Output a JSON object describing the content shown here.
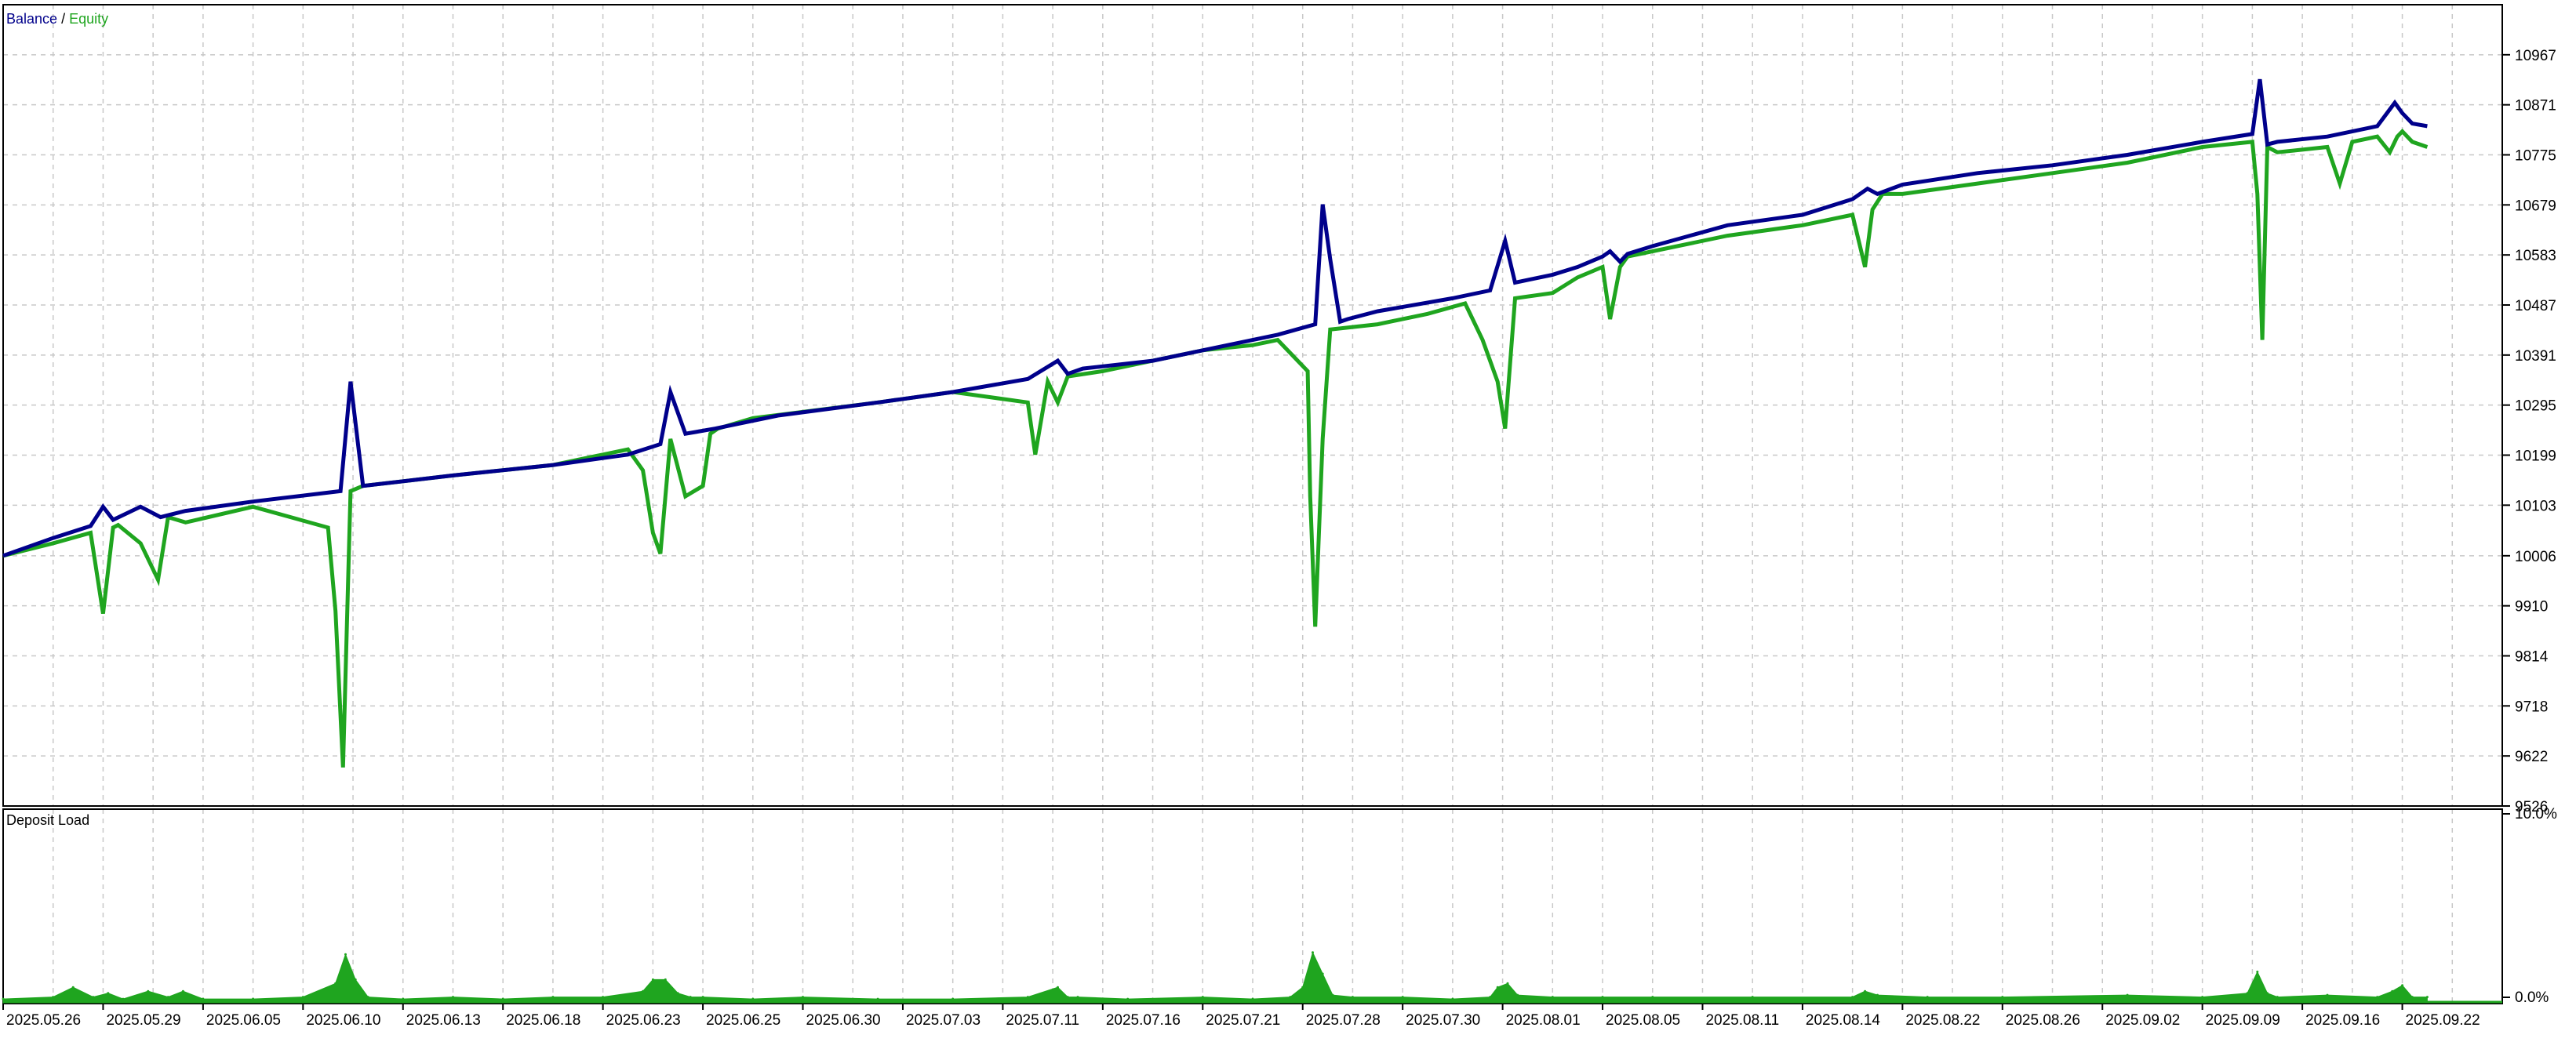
{
  "legend": {
    "balance": "Balance",
    "separator": " / ",
    "equity": "Equity"
  },
  "panel_lower_title": "Deposit Load",
  "colors": {
    "balance": "#00008b",
    "equity": "#1fa51f",
    "grid": "#c8c8c8",
    "axis": "#000000",
    "text": "#000000",
    "background": "#ffffff",
    "deposit": "#1fa51f"
  },
  "chart_data": [
    {
      "type": "line",
      "title": "",
      "legend_placement": "top-left",
      "grid": true,
      "ylim": [
        9526,
        11063
      ],
      "y_ticks": [
        9526,
        9622,
        9718,
        9814,
        9910,
        10006,
        10103,
        10199,
        10295,
        10391,
        10487,
        10583,
        10679,
        10775,
        10871,
        10967
      ],
      "x_ticks": [
        "2025.05.26",
        "2025.05.29",
        "2025.06.05",
        "2025.06.10",
        "2025.06.13",
        "2025.06.18",
        "2025.06.23",
        "2025.06.25",
        "2025.06.30",
        "2025.07.03",
        "2025.07.11",
        "2025.07.16",
        "2025.07.21",
        "2025.07.28",
        "2025.07.30",
        "2025.08.01",
        "2025.08.05",
        "2025.08.11",
        "2025.08.14",
        "2025.08.22",
        "2025.08.26",
        "2025.09.02",
        "2025.09.09",
        "2025.09.16",
        "2025.09.22"
      ],
      "x_range": [
        0,
        100
      ],
      "series": [
        {
          "name": "Balance",
          "x": [
            0,
            2,
            3.5,
            4.0,
            4.4,
            5.5,
            6.3,
            6.7,
            7.3,
            10,
            13.5,
            13.9,
            14.4,
            18,
            22,
            25,
            26.3,
            26.7,
            27.3,
            28.5,
            31,
            35,
            38,
            41,
            42.2,
            42.6,
            43.2,
            46,
            48,
            50,
            51,
            52.5,
            52.8,
            53.1,
            53.5,
            53.8,
            55,
            58,
            59.5,
            60.1,
            60.5,
            61,
            62,
            63,
            64,
            64.3,
            64.7,
            65,
            66,
            69,
            72,
            74,
            74.6,
            75,
            76,
            79,
            82,
            85,
            88,
            90,
            90.3,
            90.6,
            91,
            93,
            94,
            95,
            95.7,
            96,
            96.4,
            97
          ],
          "values": [
            10006,
            10040,
            10063,
            10100,
            10075,
            10100,
            10080,
            10085,
            10092,
            10110,
            10130,
            10340,
            10140,
            10160,
            10180,
            10200,
            10220,
            10320,
            10240,
            10250,
            10275,
            10300,
            10320,
            10345,
            10380,
            10355,
            10365,
            10380,
            10400,
            10420,
            10430,
            10450,
            10680,
            10575,
            10455,
            10460,
            10475,
            10500,
            10515,
            10610,
            10530,
            10535,
            10545,
            10560,
            10580,
            10590,
            10570,
            10585,
            10600,
            10640,
            10660,
            10690,
            10710,
            10700,
            10718,
            10740,
            10755,
            10775,
            10800,
            10815,
            10920,
            10795,
            10800,
            10810,
            10820,
            10830,
            10875,
            10855,
            10835,
            10830
          ]
        },
        {
          "name": "Equity",
          "x": [
            0,
            2,
            3.5,
            4.0,
            4.4,
            4.6,
            5.5,
            6.2,
            6.6,
            7.3,
            10,
            13.0,
            13.3,
            13.6,
            13.9,
            14.4,
            18,
            22,
            24,
            25,
            25.6,
            26.0,
            26.3,
            26.7,
            27.3,
            28.0,
            28.3,
            28.6,
            30,
            35,
            38,
            41,
            41.3,
            41.8,
            42.2,
            42.6,
            44,
            46,
            48,
            50,
            51,
            52.2,
            52.3,
            52.5,
            52.8,
            53.1,
            55,
            57,
            58.5,
            59.2,
            59.8,
            60.1,
            60.5,
            62,
            63,
            64,
            64.3,
            64.7,
            65,
            66,
            69,
            72,
            74,
            74.5,
            74.8,
            75.2,
            76,
            79,
            82,
            85,
            88,
            90,
            90.2,
            90.4,
            90.6,
            91,
            93,
            93.5,
            94,
            95,
            95.5,
            95.8,
            96,
            96.4,
            97
          ],
          "values": [
            10006,
            10030,
            10050,
            9895,
            10060,
            10065,
            10030,
            9960,
            10080,
            10070,
            10100,
            10060,
            9900,
            9600,
            10130,
            10140,
            10160,
            10180,
            10200,
            10210,
            10170,
            10050,
            10010,
            10230,
            10120,
            10140,
            10240,
            10250,
            10270,
            10300,
            10320,
            10300,
            10200,
            10340,
            10300,
            10350,
            10360,
            10380,
            10400,
            10410,
            10420,
            10360,
            10120,
            9870,
            10230,
            10440,
            10450,
            10470,
            10490,
            10420,
            10340,
            10250,
            10500,
            10510,
            10540,
            10560,
            10460,
            10560,
            10580,
            10590,
            10620,
            10640,
            10660,
            10560,
            10670,
            10700,
            10700,
            10720,
            10740,
            10760,
            10790,
            10800,
            10700,
            10420,
            10790,
            10780,
            10790,
            10720,
            10800,
            10810,
            10780,
            10810,
            10820,
            10800,
            10790
          ]
        }
      ]
    },
    {
      "type": "area",
      "title": "Deposit Load",
      "ylim": [
        0,
        10.0
      ],
      "y_ticks": [
        "10.0%",
        "0.0%"
      ],
      "x_range": [
        0,
        100
      ],
      "series": [
        {
          "name": "Deposit Load",
          "x": [
            0,
            2,
            2.8,
            3.6,
            4.2,
            4.8,
            5.8,
            6.6,
            7.2,
            8,
            10,
            12,
            13.3,
            13.7,
            14.1,
            14.6,
            16,
            18,
            20,
            22,
            24,
            25.6,
            26.0,
            26.5,
            27,
            27.5,
            28,
            30,
            32,
            35,
            38,
            41,
            42.2,
            42.6,
            43,
            45,
            48,
            50,
            51.5,
            52.0,
            52.4,
            52.8,
            53.2,
            54,
            56,
            58,
            59.5,
            59.8,
            60.2,
            60.6,
            62,
            64,
            66,
            70,
            74,
            74.5,
            75,
            77,
            80,
            85,
            88,
            89.8,
            90.2,
            90.6,
            91,
            93,
            95,
            95.6,
            96,
            96.4,
            97
          ],
          "values": [
            0.2,
            0.3,
            0.8,
            0.3,
            0.5,
            0.2,
            0.6,
            0.3,
            0.6,
            0.2,
            0.2,
            0.3,
            1.0,
            2.5,
            1.2,
            0.3,
            0.2,
            0.3,
            0.2,
            0.3,
            0.3,
            0.6,
            1.2,
            1.2,
            0.5,
            0.3,
            0.3,
            0.2,
            0.3,
            0.2,
            0.2,
            0.3,
            0.8,
            0.3,
            0.3,
            0.2,
            0.3,
            0.2,
            0.3,
            0.8,
            2.6,
            1.5,
            0.4,
            0.3,
            0.3,
            0.2,
            0.3,
            0.8,
            1.0,
            0.4,
            0.3,
            0.3,
            0.3,
            0.3,
            0.3,
            0.6,
            0.4,
            0.3,
            0.3,
            0.4,
            0.3,
            0.5,
            1.6,
            0.5,
            0.3,
            0.4,
            0.3,
            0.6,
            0.9,
            0.3,
            0.3
          ]
        }
      ]
    }
  ]
}
